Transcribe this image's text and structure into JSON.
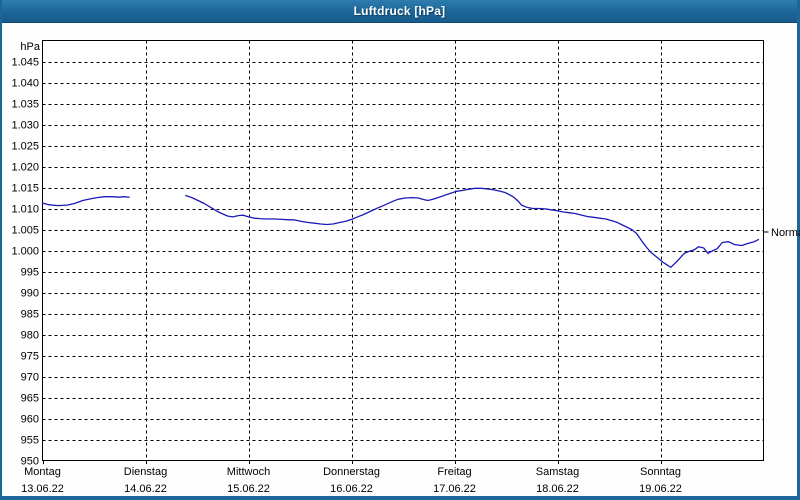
{
  "title": "Luftdruck [hPa]",
  "window": {
    "titlebar_color": "#1d6698",
    "border_color": "#1d6698",
    "title_text_color": "#ffffff"
  },
  "chart_data": {
    "type": "line",
    "title": "Luftdruck [hPa]",
    "unit_label": "hPa",
    "ylabel": "hPa",
    "ylim": [
      950,
      1050
    ],
    "ytick_step": 5,
    "ytick_label_min": 950,
    "ytick_label_max": 1045,
    "ytick_format": "thousands-dot",
    "grid": "dashed",
    "background_color": "#fdfefd",
    "axis_color": "#000000",
    "grid_color": "#000000",
    "text_color": "#000000",
    "line_color": "#1a1ab8",
    "x_axis": {
      "days": [
        {
          "name": "Montag",
          "date": "13.06.22"
        },
        {
          "name": "Dienstag",
          "date": "14.06.22"
        },
        {
          "name": "Mittwoch",
          "date": "15.06.22"
        },
        {
          "name": "Donnerstag",
          "date": "16.06.22"
        },
        {
          "name": "Freitag",
          "date": "17.06.22"
        },
        {
          "name": "Samstag",
          "date": "18.06.22"
        },
        {
          "name": "Sonntag",
          "date": "19.06.22"
        }
      ],
      "span_days": 7
    },
    "normal_marker": {
      "label": "Normal",
      "value_hpa": 1004.4
    },
    "series": [
      {
        "name": "Luftdruck",
        "unit": "hPa",
        "segments": [
          [
            [
              0.0,
              1011.3
            ],
            [
              0.06,
              1010.9
            ],
            [
              0.15,
              1010.7
            ],
            [
              0.24,
              1010.8
            ],
            [
              0.31,
              1011.2
            ],
            [
              0.39,
              1011.9
            ],
            [
              0.47,
              1012.3
            ],
            [
              0.53,
              1012.6
            ],
            [
              0.6,
              1012.8
            ],
            [
              0.68,
              1012.8
            ],
            [
              0.74,
              1012.7
            ],
            [
              0.79,
              1012.8
            ],
            [
              0.84,
              1012.7
            ]
          ],
          [
            [
              1.39,
              1013.1
            ],
            [
              1.45,
              1012.6
            ],
            [
              1.51,
              1011.9
            ],
            [
              1.57,
              1011.2
            ],
            [
              1.63,
              1010.3
            ],
            [
              1.69,
              1009.4
            ],
            [
              1.75,
              1008.7
            ],
            [
              1.8,
              1008.2
            ],
            [
              1.85,
              1008.0
            ],
            [
              1.9,
              1008.3
            ],
            [
              1.95,
              1008.4
            ],
            [
              2.0,
              1008.0
            ],
            [
              2.06,
              1007.7
            ],
            [
              2.11,
              1007.6
            ],
            [
              2.18,
              1007.5
            ],
            [
              2.25,
              1007.5
            ],
            [
              2.33,
              1007.4
            ],
            [
              2.39,
              1007.3
            ],
            [
              2.44,
              1007.3
            ],
            [
              2.5,
              1007.0
            ],
            [
              2.57,
              1006.7
            ],
            [
              2.64,
              1006.5
            ],
            [
              2.7,
              1006.3
            ],
            [
              2.76,
              1006.2
            ],
            [
              2.82,
              1006.3
            ],
            [
              2.89,
              1006.7
            ],
            [
              2.95,
              1007.0
            ],
            [
              3.0,
              1007.4
            ],
            [
              3.05,
              1007.9
            ],
            [
              3.12,
              1008.6
            ],
            [
              3.19,
              1009.4
            ],
            [
              3.26,
              1010.2
            ],
            [
              3.33,
              1010.9
            ],
            [
              3.39,
              1011.6
            ],
            [
              3.45,
              1012.2
            ],
            [
              3.52,
              1012.5
            ],
            [
              3.59,
              1012.6
            ],
            [
              3.65,
              1012.5
            ],
            [
              3.69,
              1012.2
            ],
            [
              3.74,
              1011.9
            ],
            [
              3.79,
              1012.2
            ],
            [
              3.85,
              1012.7
            ],
            [
              3.91,
              1013.2
            ],
            [
              3.97,
              1013.7
            ],
            [
              4.02,
              1014.1
            ],
            [
              4.08,
              1014.3
            ],
            [
              4.14,
              1014.6
            ],
            [
              4.2,
              1014.8
            ],
            [
              4.26,
              1014.8
            ],
            [
              4.31,
              1014.7
            ],
            [
              4.37,
              1014.5
            ],
            [
              4.43,
              1014.2
            ],
            [
              4.49,
              1013.8
            ],
            [
              4.54,
              1013.2
            ],
            [
              4.58,
              1012.6
            ],
            [
              4.62,
              1011.7
            ],
            [
              4.65,
              1010.8
            ],
            [
              4.7,
              1010.3
            ],
            [
              4.76,
              1010.0
            ],
            [
              4.82,
              1010.0
            ],
            [
              4.88,
              1009.9
            ],
            [
              4.94,
              1009.7
            ],
            [
              4.99,
              1009.5
            ],
            [
              5.05,
              1009.2
            ],
            [
              5.11,
              1009.0
            ],
            [
              5.17,
              1008.8
            ],
            [
              5.24,
              1008.4
            ],
            [
              5.29,
              1008.1
            ],
            [
              5.35,
              1007.9
            ],
            [
              5.41,
              1007.7
            ],
            [
              5.47,
              1007.5
            ],
            [
              5.53,
              1007.1
            ],
            [
              5.58,
              1006.7
            ],
            [
              5.62,
              1006.2
            ],
            [
              5.67,
              1005.6
            ],
            [
              5.72,
              1005.0
            ],
            [
              5.77,
              1004.0
            ],
            [
              5.82,
              1002.2
            ],
            [
              5.87,
              1000.6
            ],
            [
              5.91,
              999.5
            ],
            [
              5.97,
              998.3
            ],
            [
              6.03,
              997.1
            ],
            [
              6.1,
              996.0
            ],
            [
              6.16,
              997.4
            ],
            [
              6.23,
              999.3
            ],
            [
              6.28,
              999.8
            ],
            [
              6.33,
              1000.2
            ],
            [
              6.37,
              1000.9
            ],
            [
              6.42,
              1000.6
            ],
            [
              6.46,
              999.3
            ],
            [
              6.51,
              1000.0
            ],
            [
              6.55,
              1000.4
            ],
            [
              6.6,
              1001.9
            ],
            [
              6.66,
              1002.1
            ],
            [
              6.72,
              1001.4
            ],
            [
              6.79,
              1001.2
            ],
            [
              6.85,
              1001.7
            ],
            [
              6.91,
              1002.1
            ],
            [
              6.95,
              1002.6
            ]
          ]
        ]
      }
    ]
  }
}
